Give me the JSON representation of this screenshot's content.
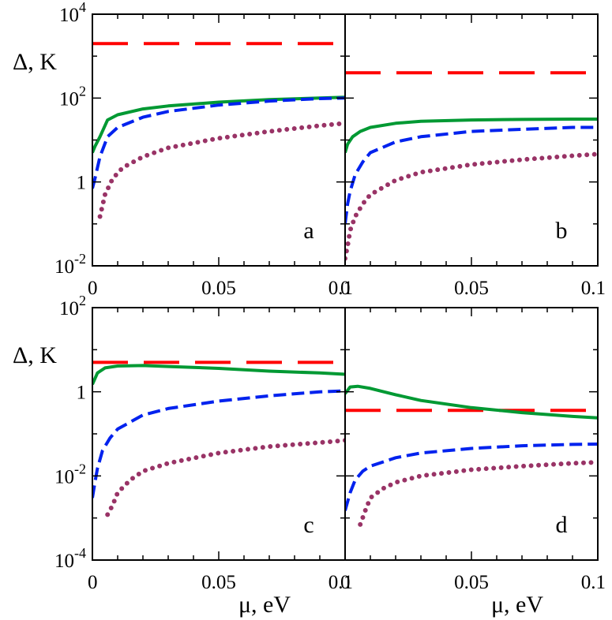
{
  "chart_data": [
    {
      "type": "line",
      "panel": "a",
      "xlabel": "",
      "ylabel": "Δ, K",
      "y_scale": "log",
      "xlim": [
        0,
        0.1
      ],
      "ylim": [
        0.01,
        10000
      ],
      "x_ticks": [
        "0",
        "0.05",
        "0.1"
      ],
      "y_ticks": [
        {
          "base": "10",
          "exp": "4"
        },
        {
          "base": "10",
          "exp": "2"
        },
        {
          "base": "1",
          "exp": ""
        },
        {
          "base": "10",
          "exp": "-2"
        }
      ],
      "series": [
        {
          "style": "dashed",
          "color": "#ff0000",
          "points": [
            [
              0.0,
              2000
            ],
            [
              0.1,
              2000
            ]
          ]
        },
        {
          "style": "solid",
          "color": "#009933",
          "points": [
            [
              0.0,
              5
            ],
            [
              0.001,
              7
            ],
            [
              0.003,
              12
            ],
            [
              0.006,
              30
            ],
            [
              0.01,
              40
            ],
            [
              0.02,
              55
            ],
            [
              0.03,
              65
            ],
            [
              0.05,
              80
            ],
            [
              0.07,
              92
            ],
            [
              0.09,
              100
            ],
            [
              0.1,
              105
            ]
          ]
        },
        {
          "style": "dashed",
          "color": "#0022ee",
          "points": [
            [
              0.0,
              0.7
            ],
            [
              0.001,
              1.2
            ],
            [
              0.003,
              4
            ],
            [
              0.006,
              12
            ],
            [
              0.01,
              20
            ],
            [
              0.02,
              35
            ],
            [
              0.03,
              48
            ],
            [
              0.05,
              68
            ],
            [
              0.07,
              85
            ],
            [
              0.09,
              97
            ],
            [
              0.1,
              100
            ]
          ]
        },
        {
          "style": "dotted",
          "color": "#993366",
          "points": [
            [
              0.003,
              0.15
            ],
            [
              0.005,
              0.5
            ],
            [
              0.008,
              1.2
            ],
            [
              0.012,
              2.2
            ],
            [
              0.02,
              4
            ],
            [
              0.03,
              6.5
            ],
            [
              0.05,
              11
            ],
            [
              0.07,
              16
            ],
            [
              0.09,
              22
            ],
            [
              0.1,
              25
            ]
          ]
        }
      ]
    },
    {
      "type": "line",
      "panel": "b",
      "xlabel": "",
      "ylabel": "",
      "y_scale": "log",
      "xlim": [
        0,
        0.1
      ],
      "ylim": [
        0.01,
        10000
      ],
      "x_ticks": [
        "0",
        "0.05",
        "0.1"
      ],
      "series": [
        {
          "style": "dashed",
          "color": "#ff0000",
          "points": [
            [
              0.0,
              400
            ],
            [
              0.1,
              400
            ]
          ]
        },
        {
          "style": "solid",
          "color": "#009933",
          "points": [
            [
              0.0,
              5
            ],
            [
              0.001,
              8
            ],
            [
              0.003,
              12
            ],
            [
              0.006,
              16
            ],
            [
              0.01,
              20
            ],
            [
              0.02,
              25
            ],
            [
              0.03,
              28
            ],
            [
              0.05,
              30
            ],
            [
              0.07,
              31
            ],
            [
              0.09,
              31.5
            ],
            [
              0.1,
              31.5
            ]
          ]
        },
        {
          "style": "dashed",
          "color": "#0022ee",
          "points": [
            [
              0.0,
              0.1
            ],
            [
              0.001,
              0.3
            ],
            [
              0.002,
              0.6
            ],
            [
              0.004,
              1.5
            ],
            [
              0.007,
              3
            ],
            [
              0.01,
              5
            ],
            [
              0.02,
              9
            ],
            [
              0.03,
              12
            ],
            [
              0.05,
              16
            ],
            [
              0.07,
              18
            ],
            [
              0.09,
              20
            ],
            [
              0.1,
              20
            ]
          ]
        },
        {
          "style": "dotted",
          "color": "#993366",
          "points": [
            [
              0.0,
              0.015
            ],
            [
              0.001,
              0.03
            ],
            [
              0.002,
              0.07
            ],
            [
              0.004,
              0.15
            ],
            [
              0.007,
              0.3
            ],
            [
              0.01,
              0.5
            ],
            [
              0.02,
              1.1
            ],
            [
              0.03,
              1.7
            ],
            [
              0.05,
              2.6
            ],
            [
              0.07,
              3.4
            ],
            [
              0.09,
              4.2
            ],
            [
              0.1,
              4.6
            ]
          ]
        }
      ]
    },
    {
      "type": "line",
      "panel": "c",
      "xlabel": "μ, eV",
      "ylabel": "Δ, K",
      "y_scale": "log",
      "xlim": [
        0,
        0.1
      ],
      "ylim": [
        0.0001,
        100
      ],
      "x_ticks": [
        "0",
        "0.05",
        "0.1"
      ],
      "y_ticks": [
        {
          "base": "10",
          "exp": "2"
        },
        {
          "base": "1",
          "exp": ""
        },
        {
          "base": "10",
          "exp": "-2"
        },
        {
          "base": "10",
          "exp": "-4"
        }
      ],
      "series": [
        {
          "style": "dashed",
          "color": "#ff0000",
          "points": [
            [
              0.0,
              5
            ],
            [
              0.1,
              5
            ]
          ]
        },
        {
          "style": "solid",
          "color": "#009933",
          "points": [
            [
              0.0,
              1.5
            ],
            [
              0.002,
              2.8
            ],
            [
              0.005,
              3.7
            ],
            [
              0.01,
              4.1
            ],
            [
              0.02,
              4.2
            ],
            [
              0.03,
              4.0
            ],
            [
              0.05,
              3.6
            ],
            [
              0.07,
              3.1
            ],
            [
              0.09,
              2.8
            ],
            [
              0.1,
              2.6
            ]
          ]
        },
        {
          "style": "dashed",
          "color": "#0022ee",
          "points": [
            [
              0.0,
              0.003
            ],
            [
              0.001,
              0.007
            ],
            [
              0.002,
              0.015
            ],
            [
              0.004,
              0.04
            ],
            [
              0.007,
              0.08
            ],
            [
              0.01,
              0.13
            ],
            [
              0.02,
              0.28
            ],
            [
              0.03,
              0.4
            ],
            [
              0.05,
              0.6
            ],
            [
              0.07,
              0.8
            ],
            [
              0.09,
              1.0
            ],
            [
              0.1,
              1.05
            ]
          ]
        },
        {
          "style": "dotted",
          "color": "#993366",
          "points": [
            [
              0.006,
              0.0012
            ],
            [
              0.008,
              0.002
            ],
            [
              0.01,
              0.004
            ],
            [
              0.015,
              0.008
            ],
            [
              0.02,
              0.013
            ],
            [
              0.03,
              0.02
            ],
            [
              0.05,
              0.035
            ],
            [
              0.07,
              0.05
            ],
            [
              0.09,
              0.062
            ],
            [
              0.1,
              0.07
            ]
          ]
        }
      ]
    },
    {
      "type": "line",
      "panel": "d",
      "xlabel": "μ, eV",
      "ylabel": "",
      "y_scale": "log",
      "xlim": [
        0,
        0.1
      ],
      "ylim": [
        0.0001,
        100
      ],
      "x_ticks": [
        "0",
        "0.05",
        "0.1"
      ],
      "series": [
        {
          "style": "dashed",
          "color": "#ff0000",
          "points": [
            [
              0.0,
              0.36
            ],
            [
              0.1,
              0.36
            ]
          ]
        },
        {
          "style": "solid",
          "color": "#009933",
          "points": [
            [
              0.0,
              0.9
            ],
            [
              0.002,
              1.3
            ],
            [
              0.005,
              1.35
            ],
            [
              0.01,
              1.2
            ],
            [
              0.02,
              0.85
            ],
            [
              0.03,
              0.62
            ],
            [
              0.05,
              0.42
            ],
            [
              0.07,
              0.32
            ],
            [
              0.09,
              0.26
            ],
            [
              0.1,
              0.24
            ]
          ]
        },
        {
          "style": "dashed",
          "color": "#0022ee",
          "points": [
            [
              0.0,
              0.0015
            ],
            [
              0.002,
              0.004
            ],
            [
              0.004,
              0.008
            ],
            [
              0.007,
              0.013
            ],
            [
              0.01,
              0.017
            ],
            [
              0.02,
              0.027
            ],
            [
              0.03,
              0.035
            ],
            [
              0.05,
              0.045
            ],
            [
              0.07,
              0.052
            ],
            [
              0.09,
              0.056
            ],
            [
              0.1,
              0.057
            ]
          ]
        },
        {
          "style": "dotted",
          "color": "#993366",
          "points": [
            [
              0.006,
              0.0007
            ],
            [
              0.008,
              0.0015
            ],
            [
              0.01,
              0.003
            ],
            [
              0.015,
              0.005
            ],
            [
              0.02,
              0.007
            ],
            [
              0.03,
              0.01
            ],
            [
              0.05,
              0.014
            ],
            [
              0.07,
              0.017
            ],
            [
              0.09,
              0.02
            ],
            [
              0.1,
              0.021
            ]
          ]
        }
      ]
    }
  ]
}
